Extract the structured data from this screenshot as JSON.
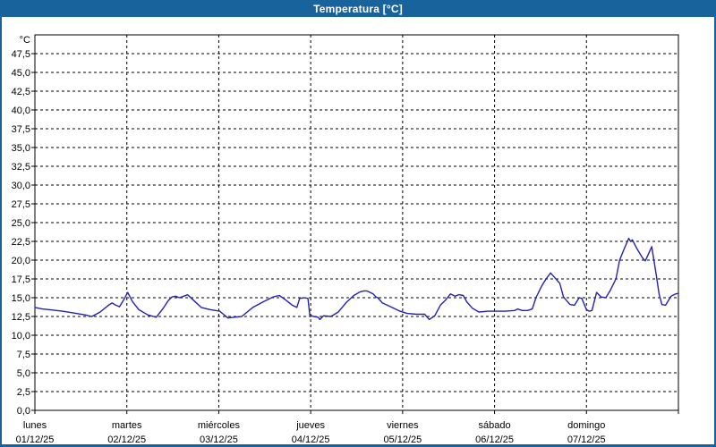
{
  "window": {
    "title": "Temperatura [°C]"
  },
  "colors": {
    "titlebar_bg": "#19639c",
    "frame": "#19639c",
    "title_text": "#ffffff",
    "plot_background": "#ffffff",
    "plot_border": "#000000",
    "gridline": "#000000",
    "axis_text": "#000000",
    "series_line": "#2222b2"
  },
  "chart_data": {
    "type": "line",
    "title": "Temperatura [°C]",
    "ylabel": "°C",
    "xlabel": "",
    "ylim": [
      0,
      50
    ],
    "y_tick_step": 2.5,
    "y_tick_labels": [
      "0,0",
      "2,5",
      "5,0",
      "7,5",
      "10,0",
      "12,5",
      "15,0",
      "17,5",
      "20,0",
      "22,5",
      "25,0",
      "27,5",
      "30,0",
      "32,5",
      "35,0",
      "37,5",
      "40,0",
      "42,5",
      "45,0",
      "47,5"
    ],
    "y_unit_label": "°C",
    "grid": true,
    "legend": "none",
    "x_axis_days": [
      {
        "name": "lunes",
        "date": "01/12/25"
      },
      {
        "name": "martes",
        "date": "02/12/25"
      },
      {
        "name": "miércoles",
        "date": "03/12/25"
      },
      {
        "name": "jueves",
        "date": "04/12/25"
      },
      {
        "name": "viernes",
        "date": "05/12/25"
      },
      {
        "name": "sábado",
        "date": "06/12/25"
      },
      {
        "name": "domingo",
        "date": "07/12/25"
      }
    ],
    "x_unit": "days_since_monday_00h",
    "xlim": [
      0,
      7
    ],
    "series": [
      {
        "name": "Temperatura",
        "points": [
          [
            0.0,
            13.7
          ],
          [
            0.08,
            13.5
          ],
          [
            0.16,
            13.4
          ],
          [
            0.3,
            13.2
          ],
          [
            0.45,
            12.9
          ],
          [
            0.55,
            12.7
          ],
          [
            0.62,
            12.5
          ],
          [
            0.71,
            13.1
          ],
          [
            0.8,
            14.0
          ],
          [
            0.84,
            14.3
          ],
          [
            0.88,
            14.0
          ],
          [
            0.92,
            13.8
          ],
          [
            0.97,
            14.8
          ],
          [
            1.01,
            15.7
          ],
          [
            1.06,
            14.5
          ],
          [
            1.13,
            13.4
          ],
          [
            1.23,
            12.7
          ],
          [
            1.32,
            12.4
          ],
          [
            1.39,
            13.5
          ],
          [
            1.45,
            14.6
          ],
          [
            1.49,
            15.1
          ],
          [
            1.53,
            15.2
          ],
          [
            1.57,
            15.0
          ],
          [
            1.62,
            15.2
          ],
          [
            1.66,
            15.4
          ],
          [
            1.74,
            14.5
          ],
          [
            1.81,
            13.7
          ],
          [
            1.91,
            13.4
          ],
          [
            2.01,
            13.2
          ],
          [
            2.05,
            12.8
          ],
          [
            2.1,
            12.3
          ],
          [
            2.17,
            12.4
          ],
          [
            2.25,
            12.5
          ],
          [
            2.37,
            13.7
          ],
          [
            2.49,
            14.5
          ],
          [
            2.59,
            15.1
          ],
          [
            2.66,
            15.3
          ],
          [
            2.74,
            14.6
          ],
          [
            2.8,
            14.0
          ],
          [
            2.85,
            13.7
          ],
          [
            2.88,
            14.9
          ],
          [
            2.93,
            15.0
          ],
          [
            2.97,
            14.9
          ],
          [
            2.99,
            12.7
          ],
          [
            3.03,
            12.5
          ],
          [
            3.08,
            12.4
          ],
          [
            3.1,
            12.1
          ],
          [
            3.14,
            12.6
          ],
          [
            3.22,
            12.5
          ],
          [
            3.3,
            13.1
          ],
          [
            3.39,
            14.4
          ],
          [
            3.47,
            15.3
          ],
          [
            3.54,
            15.8
          ],
          [
            3.58,
            15.9
          ],
          [
            3.61,
            15.9
          ],
          [
            3.68,
            15.5
          ],
          [
            3.71,
            15.1
          ],
          [
            3.73,
            15.0
          ],
          [
            3.78,
            14.3
          ],
          [
            3.87,
            13.8
          ],
          [
            3.97,
            13.2
          ],
          [
            4.05,
            12.9
          ],
          [
            4.15,
            12.8
          ],
          [
            4.24,
            12.8
          ],
          [
            4.29,
            12.1
          ],
          [
            4.35,
            12.6
          ],
          [
            4.41,
            14.0
          ],
          [
            4.46,
            14.6
          ],
          [
            4.52,
            15.5
          ],
          [
            4.57,
            15.2
          ],
          [
            4.61,
            15.4
          ],
          [
            4.66,
            15.3
          ],
          [
            4.7,
            14.4
          ],
          [
            4.76,
            13.6
          ],
          [
            4.83,
            13.1
          ],
          [
            4.93,
            13.2
          ],
          [
            5.02,
            13.2
          ],
          [
            5.12,
            13.2
          ],
          [
            5.22,
            13.3
          ],
          [
            5.25,
            13.5
          ],
          [
            5.3,
            13.3
          ],
          [
            5.36,
            13.3
          ],
          [
            5.41,
            13.5
          ],
          [
            5.45,
            15.0
          ],
          [
            5.51,
            16.5
          ],
          [
            5.56,
            17.5
          ],
          [
            5.61,
            18.3
          ],
          [
            5.66,
            17.6
          ],
          [
            5.71,
            16.9
          ],
          [
            5.75,
            15.1
          ],
          [
            5.82,
            14.1
          ],
          [
            5.87,
            14.0
          ],
          [
            5.92,
            15.0
          ],
          [
            5.95,
            14.9
          ],
          [
            6.0,
            13.4
          ],
          [
            6.03,
            13.2
          ],
          [
            6.06,
            13.3
          ],
          [
            6.11,
            15.7
          ],
          [
            6.16,
            15.1
          ],
          [
            6.21,
            15.0
          ],
          [
            6.26,
            16.0
          ],
          [
            6.32,
            17.5
          ],
          [
            6.36,
            20.0
          ],
          [
            6.41,
            21.5
          ],
          [
            6.46,
            22.9
          ],
          [
            6.48,
            22.5
          ],
          [
            6.5,
            22.7
          ],
          [
            6.55,
            21.5
          ],
          [
            6.61,
            20.3
          ],
          [
            6.64,
            19.9
          ],
          [
            6.71,
            21.8
          ],
          [
            6.76,
            18.0
          ],
          [
            6.79,
            15.5
          ],
          [
            6.82,
            14.1
          ],
          [
            6.86,
            14.0
          ],
          [
            6.92,
            15.2
          ],
          [
            6.97,
            15.5
          ],
          [
            7.0,
            15.6
          ]
        ]
      }
    ]
  }
}
